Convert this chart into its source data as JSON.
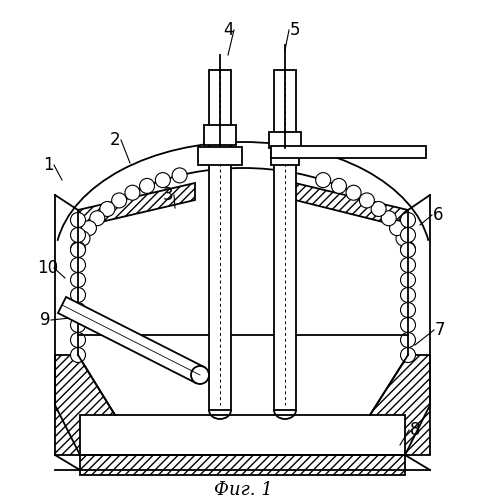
{
  "title": "Фиг. 1",
  "bg_color": "#ffffff",
  "line_color": "#000000",
  "label_color": "#000000",
  "fig_width": 4.86,
  "fig_height": 5.0,
  "dpi": 100
}
